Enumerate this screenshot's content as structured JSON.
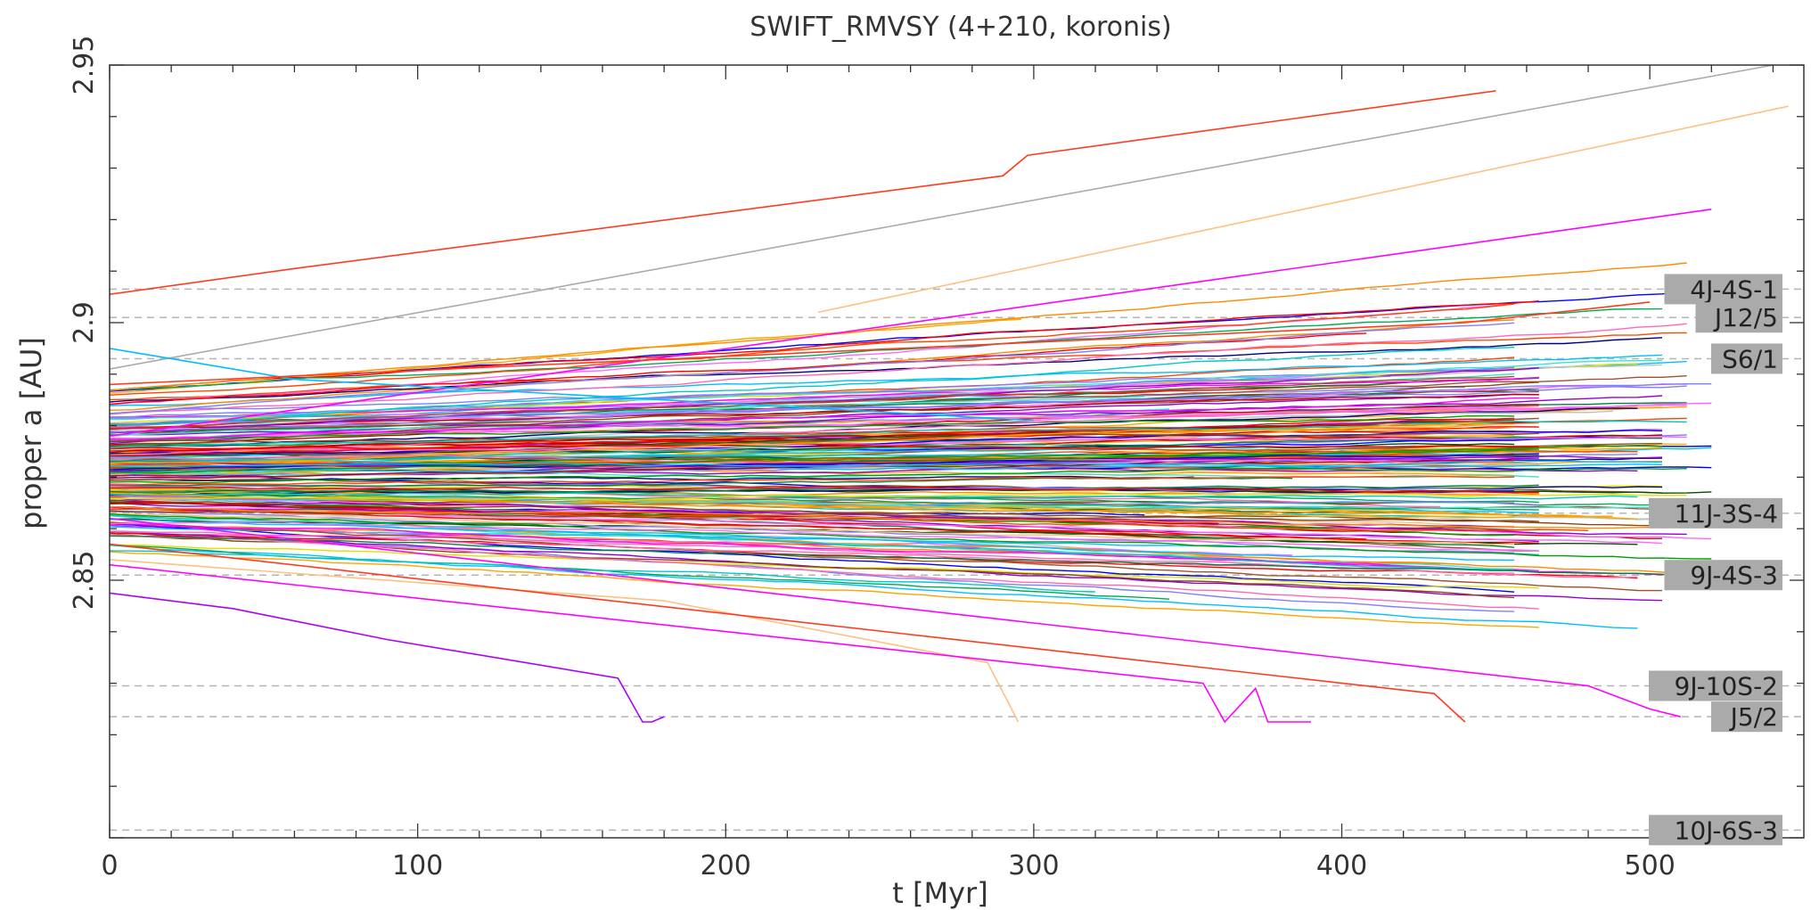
{
  "chart_data": {
    "type": "line",
    "title": "SWIFT_RMVSY (4+210, koronis)",
    "xlabel": "t [Myr]",
    "ylabel": "proper a [AU]",
    "xlim": [
      0,
      550
    ],
    "ylim": [
      2.8,
      2.95
    ],
    "x_ticks": [
      0,
      100,
      200,
      300,
      400,
      500
    ],
    "y_ticks": [
      2.85,
      2.9,
      2.95
    ],
    "x_tick_labels": [
      "0",
      "100",
      "200",
      "300",
      "400",
      "500"
    ],
    "y_tick_labels": [
      "2.85",
      "2.9",
      "2.95"
    ],
    "grid": false,
    "resonances": [
      {
        "label": "4J-4S-1",
        "a": 2.9065
      },
      {
        "label": "J12/5",
        "a": 2.901
      },
      {
        "label": "S6/1",
        "a": 2.893
      },
      {
        "label": "11J-3S-4",
        "a": 2.863
      },
      {
        "label": "9J-4S-3",
        "a": 2.851
      },
      {
        "label": "9J-10S-2",
        "a": 2.8295
      },
      {
        "label": "J5/2",
        "a": 2.8235
      },
      {
        "label": "10J-6S-3",
        "a": 2.8015
      }
    ],
    "series_summary": "214 asteroid proper semimajor axis drift tracks (Koronis family), initial a between 2.845 and 2.905 AU, drifting linearly by up to about +/-0.06 AU over up to 540 Myr",
    "series": [
      {
        "color": "#ff3b1f",
        "x": [
          0,
          60,
          290,
          298,
          450
        ],
        "y": [
          2.9055,
          2.9105,
          2.9285,
          2.9325,
          2.945
        ]
      },
      {
        "color": "#aaaaaa",
        "x": [
          0,
          540
        ],
        "y": [
          2.891,
          2.95
        ]
      },
      {
        "color": "#ffc080",
        "x": [
          230,
          545
        ],
        "y": [
          2.902,
          2.942
        ]
      },
      {
        "color": "#ff00ff",
        "x": [
          0,
          520
        ],
        "y": [
          2.878,
          2.922
        ]
      },
      {
        "color": "#00bbff",
        "x": [
          0,
          60,
          300
        ],
        "y": [
          2.895,
          2.889,
          2.881
        ]
      },
      {
        "color": "#aa00ff",
        "x": [
          0,
          40,
          90,
          165,
          173,
          176,
          180
        ],
        "y": [
          2.8475,
          2.8445,
          2.8385,
          2.831,
          2.8225,
          2.8225,
          2.8235
        ]
      },
      {
        "color": "#ffc080",
        "x": [
          0,
          180,
          285,
          295
        ],
        "y": [
          2.854,
          2.846,
          2.834,
          2.8225
        ]
      },
      {
        "color": "#ff00ff",
        "x": [
          0,
          355,
          362,
          372,
          376,
          390
        ],
        "y": [
          2.853,
          2.83,
          2.8225,
          2.829,
          2.8225,
          2.8225
        ]
      },
      {
        "color": "#ff00ff",
        "x": [
          0,
          480,
          500,
          510
        ],
        "y": [
          2.862,
          2.8295,
          2.825,
          2.8235
        ]
      },
      {
        "color": "#ff3b1f",
        "x": [
          0,
          430,
          440
        ],
        "y": [
          2.857,
          2.828,
          2.8225
        ]
      },
      {
        "color": "#ff3b1f",
        "x": [
          0,
          440,
          500
        ],
        "y": [
          2.888,
          2.9,
          2.904
        ]
      }
    ]
  }
}
